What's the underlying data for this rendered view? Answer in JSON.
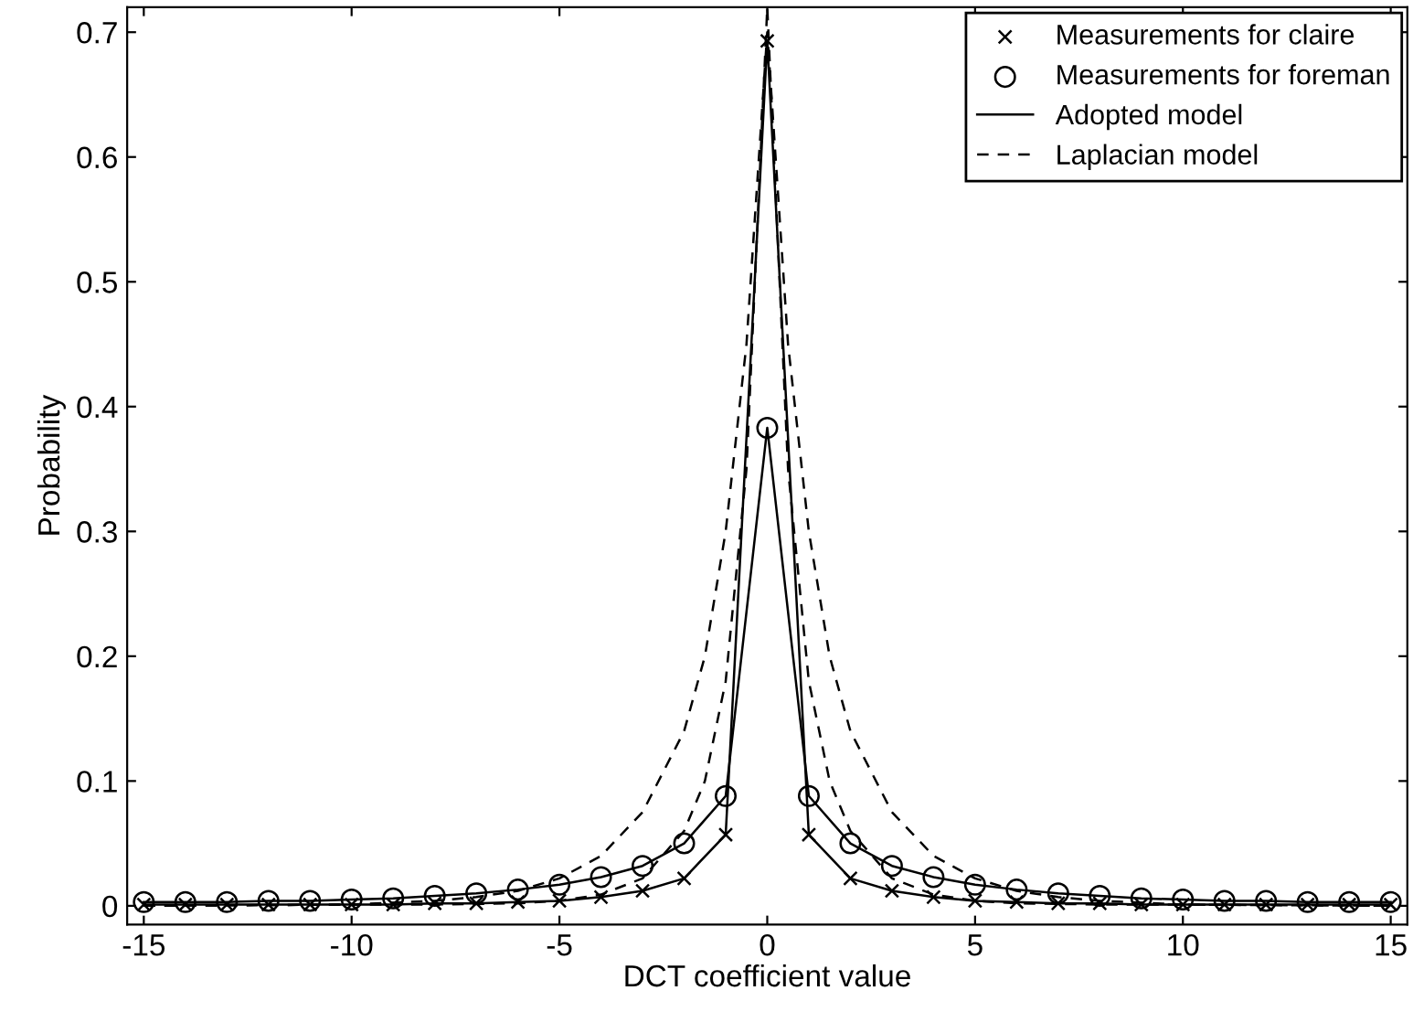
{
  "chart_data": {
    "type": "line",
    "xlabel": "DCT coefficient value",
    "ylabel": "Probability",
    "xlim": [
      -15.4,
      15.4
    ],
    "ylim": [
      -0.015,
      0.72
    ],
    "xticks": [
      -15,
      -10,
      -5,
      0,
      5,
      10,
      15
    ],
    "yticks": [
      0,
      0.1,
      0.2,
      0.3,
      0.4,
      0.5,
      0.6,
      0.7
    ],
    "grid": false,
    "legend": "top right",
    "series": [
      {
        "name": "Measurements for claire",
        "type": "scatter",
        "marker": "cross",
        "color": "#000000",
        "x": [
          -15,
          -14,
          -13,
          -12,
          -11,
          -10,
          -9,
          -8,
          -7,
          -6,
          -5,
          -4,
          -3,
          -2,
          -1,
          0,
          1,
          2,
          3,
          4,
          5,
          6,
          7,
          8,
          9,
          10,
          11,
          12,
          13,
          14,
          15
        ],
        "values": [
          0.001,
          0.001,
          0.001,
          0.001,
          0.001,
          0.001,
          0.001,
          0.002,
          0.002,
          0.003,
          0.004,
          0.007,
          0.012,
          0.022,
          0.057,
          0.693,
          0.057,
          0.022,
          0.012,
          0.007,
          0.004,
          0.003,
          0.002,
          0.002,
          0.001,
          0.001,
          0.001,
          0.001,
          0.001,
          0.001,
          0.001
        ]
      },
      {
        "name": "Measurements for foreman",
        "type": "scatter",
        "marker": "circle",
        "color": "#000000",
        "x": [
          -15,
          -14,
          -13,
          -12,
          -11,
          -10,
          -9,
          -8,
          -7,
          -6,
          -5,
          -4,
          -3,
          -2,
          -1,
          0,
          1,
          2,
          3,
          4,
          5,
          6,
          7,
          8,
          9,
          10,
          11,
          12,
          13,
          14,
          15
        ],
        "values": [
          0.003,
          0.003,
          0.003,
          0.004,
          0.004,
          0.005,
          0.006,
          0.008,
          0.01,
          0.013,
          0.017,
          0.023,
          0.032,
          0.05,
          0.088,
          0.383,
          0.088,
          0.05,
          0.032,
          0.023,
          0.017,
          0.013,
          0.01,
          0.008,
          0.006,
          0.005,
          0.004,
          0.004,
          0.003,
          0.003,
          0.003
        ]
      },
      {
        "name": "Adopted model",
        "line_style": "solid",
        "color": "#000000",
        "x": [
          -15,
          -14,
          -13,
          -12,
          -11,
          -10,
          -9,
          -8,
          -7,
          -6,
          -5,
          -4,
          -3,
          -2,
          -1,
          0,
          1,
          2,
          3,
          4,
          5,
          6,
          7,
          8,
          9,
          10,
          11,
          12,
          13,
          14,
          15
        ],
        "values": [
          0.001,
          0.001,
          0.001,
          0.001,
          0.001,
          0.001,
          0.001,
          0.002,
          0.002,
          0.003,
          0.004,
          0.007,
          0.012,
          0.022,
          0.057,
          0.693,
          0.057,
          0.022,
          0.012,
          0.007,
          0.004,
          0.003,
          0.002,
          0.002,
          0.001,
          0.001,
          0.001,
          0.001,
          0.001,
          0.001,
          0.001
        ]
      },
      {
        "line_style": "solid",
        "color": "#000000",
        "x": [
          -15,
          -14,
          -13,
          -12,
          -11,
          -10,
          -9,
          -8,
          -7,
          -6,
          -5,
          -4,
          -3,
          -2,
          -1,
          0,
          1,
          2,
          3,
          4,
          5,
          6,
          7,
          8,
          9,
          10,
          11,
          12,
          13,
          14,
          15
        ],
        "values": [
          0.003,
          0.003,
          0.003,
          0.004,
          0.004,
          0.005,
          0.006,
          0.008,
          0.01,
          0.013,
          0.017,
          0.023,
          0.032,
          0.05,
          0.088,
          0.383,
          0.088,
          0.05,
          0.032,
          0.023,
          0.017,
          0.013,
          0.01,
          0.008,
          0.006,
          0.005,
          0.004,
          0.004,
          0.003,
          0.003,
          0.003
        ]
      },
      {
        "name": "Laplacian model",
        "line_style": "dashed",
        "color": "#000000",
        "x": [
          -15,
          -10,
          -8,
          -6,
          -5,
          -4,
          -3,
          -2,
          -1.5,
          -1,
          -0.5,
          0,
          0.5,
          1,
          1.5,
          2,
          3,
          4,
          5,
          6,
          8,
          10,
          15
        ],
        "values": [
          0,
          0.001,
          0.001,
          0.002,
          0.004,
          0.009,
          0.022,
          0.06,
          0.1,
          0.18,
          0.35,
          0.72,
          0.35,
          0.18,
          0.1,
          0.06,
          0.022,
          0.009,
          0.004,
          0.002,
          0.001,
          0.001,
          0
        ]
      },
      {
        "line_style": "dashed",
        "color": "#000000",
        "x": [
          -15,
          -10,
          -8,
          -7,
          -6,
          -5,
          -4,
          -3,
          -2,
          -1.5,
          -1,
          -0.5,
          0,
          0.5,
          1,
          1.5,
          2,
          3,
          4,
          5,
          6,
          7,
          8,
          10,
          15
        ],
        "values": [
          0,
          0.001,
          0.004,
          0.007,
          0.012,
          0.022,
          0.04,
          0.075,
          0.14,
          0.2,
          0.3,
          0.45,
          0.7,
          0.45,
          0.3,
          0.2,
          0.14,
          0.075,
          0.04,
          0.022,
          0.012,
          0.007,
          0.004,
          0.001,
          0
        ]
      }
    ]
  }
}
